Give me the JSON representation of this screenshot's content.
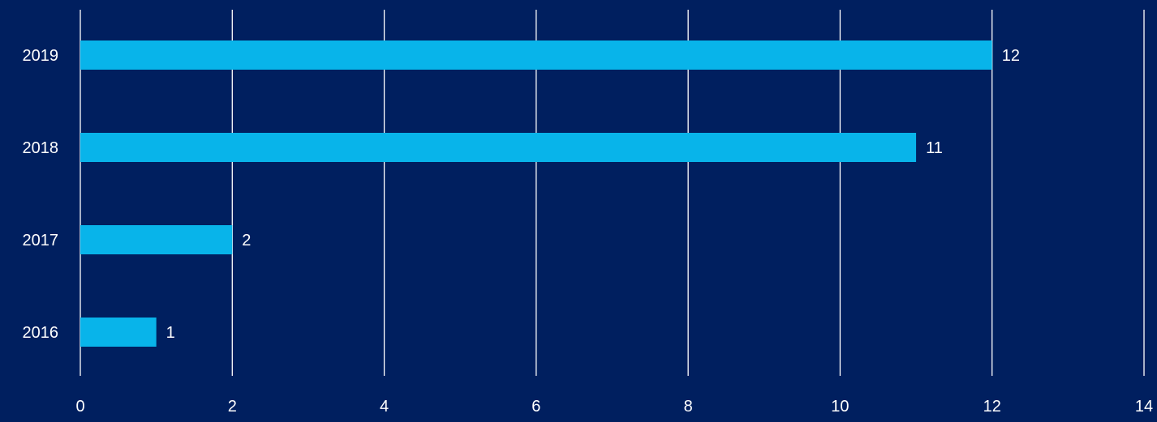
{
  "colors": {
    "background": "#001f5f",
    "bar": "#08b4ea",
    "grid": "#ffffff",
    "text": "#ffffff"
  },
  "chart_data": {
    "type": "bar",
    "orientation": "horizontal",
    "categories": [
      "2019",
      "2018",
      "2017",
      "2016"
    ],
    "values": [
      12,
      11,
      2,
      1
    ],
    "data_labels": [
      "12",
      "11",
      "2",
      "1"
    ],
    "x_ticks": [
      "0",
      "2",
      "4",
      "6",
      "8",
      "10",
      "12",
      "14"
    ],
    "xlim": [
      0,
      14
    ],
    "grid": true,
    "legend": "none"
  }
}
